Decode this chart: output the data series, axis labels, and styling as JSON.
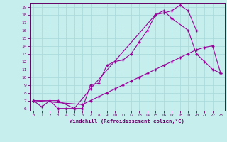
{
  "xlabel": "Windchill (Refroidissement éolien,°C)",
  "bg_color": "#c5eeed",
  "line_color": "#990099",
  "xlim": [
    -0.5,
    23.5
  ],
  "ylim": [
    5.7,
    19.5
  ],
  "xticks": [
    0,
    1,
    2,
    3,
    4,
    5,
    6,
    7,
    8,
    9,
    10,
    11,
    12,
    13,
    14,
    15,
    16,
    17,
    18,
    19,
    20,
    21,
    22,
    23
  ],
  "yticks": [
    6,
    7,
    8,
    9,
    10,
    11,
    12,
    13,
    14,
    15,
    16,
    17,
    18,
    19
  ],
  "line1_x": [
    0,
    1,
    2,
    3,
    4,
    5,
    6,
    7,
    8,
    9,
    10,
    11,
    12,
    13,
    14,
    15,
    16,
    17,
    18,
    19,
    20
  ],
  "line1_y": [
    7.0,
    6.2,
    7.0,
    6.0,
    6.0,
    6.0,
    6.0,
    9.0,
    9.2,
    11.5,
    12.0,
    12.2,
    13.0,
    14.5,
    16.0,
    18.0,
    18.2,
    18.5,
    19.2,
    18.5,
    16.0
  ],
  "line2_x": [
    0,
    3,
    5,
    7,
    15,
    16,
    17,
    19,
    20,
    21,
    22,
    23
  ],
  "line2_y": [
    7.0,
    7.0,
    6.0,
    8.5,
    18.0,
    18.5,
    17.5,
    16.0,
    13.0,
    12.0,
    11.0,
    10.5
  ],
  "line3_x": [
    0,
    6,
    7,
    8,
    9,
    10,
    11,
    12,
    13,
    14,
    15,
    16,
    17,
    18,
    19,
    20,
    21,
    22,
    23
  ],
  "line3_y": [
    7.0,
    6.5,
    7.0,
    7.5,
    8.0,
    8.5,
    9.0,
    9.5,
    10.0,
    10.5,
    11.0,
    11.5,
    12.0,
    12.5,
    13.0,
    13.5,
    13.8,
    14.0,
    10.5
  ]
}
